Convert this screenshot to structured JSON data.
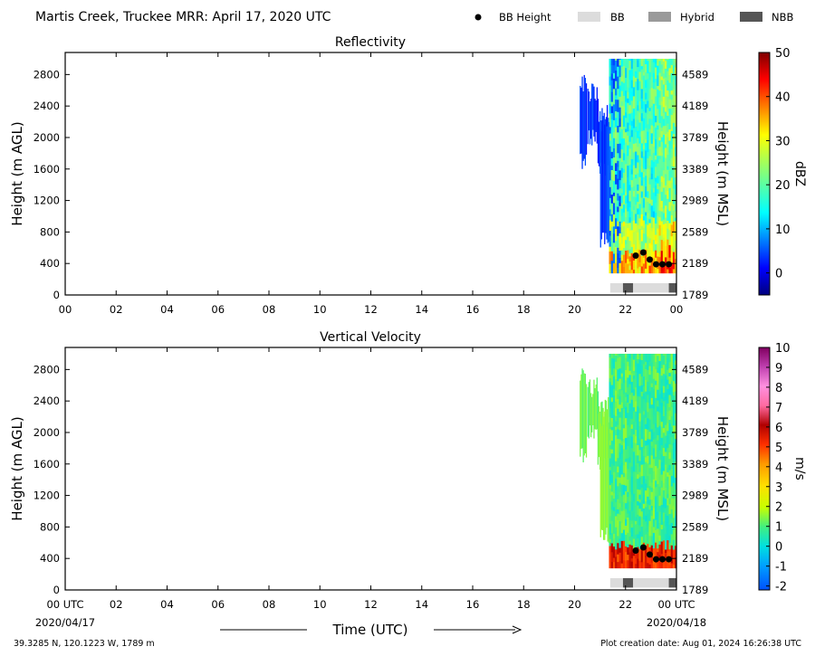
{
  "header": {
    "title": "Martis Creek, Truckee MRR:  April 17, 2020 UTC",
    "legend": [
      {
        "label": "BB Height",
        "marker": "dot",
        "color": "#000000"
      },
      {
        "label": "BB",
        "marker": "rect",
        "color": "#dcdcdc"
      },
      {
        "label": "Hybrid",
        "marker": "rect",
        "color": "#9a9a9a"
      },
      {
        "label": "NBB",
        "marker": "rect",
        "color": "#555555"
      }
    ]
  },
  "footer": {
    "location": "39.3285 N, 120.1223 W, 1789 m",
    "creation": "Plot creation date: Aug 01, 2024 16:26:38 UTC",
    "time_label": "Time (UTC)",
    "start_date": "2020/04/17",
    "end_date": "2020/04/18"
  },
  "chart_data": [
    {
      "type": "heatmap",
      "title": "Reflectivity",
      "ylabel": "Height (m AGL)",
      "ylabel_right": "Height (m MSL)",
      "colorbar_label": "dBZ",
      "colorbar_range": [
        -5,
        50
      ],
      "colorbar_ticks": [
        "0",
        "10",
        "20",
        "30",
        "40",
        "50"
      ],
      "colormap": "jet",
      "xlim": [
        0,
        24
      ],
      "ylim": [
        0,
        3080
      ],
      "x_tick_labels": [
        "00",
        "02",
        "04",
        "06",
        "08",
        "10",
        "12",
        "14",
        "16",
        "18",
        "20",
        "22",
        "00"
      ],
      "y_ticks": [
        0,
        400,
        800,
        1200,
        1600,
        2000,
        2400,
        2800
      ],
      "y_tick_labels": [
        "0",
        "400",
        "800",
        "1200",
        "1600",
        "2000",
        "2400",
        "2800"
      ],
      "y2_tick_labels": [
        "1789",
        "2189",
        "2589",
        "2989",
        "3389",
        "3789",
        "4189",
        "4589"
      ],
      "bb_height": {
        "x": [
          22.4,
          22.7,
          22.95,
          23.2,
          23.45,
          23.7
        ],
        "y": [
          500,
          540,
          450,
          390,
          390,
          390
        ]
      },
      "bb_class_bar": [
        {
          "x0": 21.4,
          "x1": 21.9,
          "class": "BB"
        },
        {
          "x0": 21.9,
          "x1": 22.3,
          "class": "NBB"
        },
        {
          "x0": 22.3,
          "x1": 23.7,
          "class": "BB"
        },
        {
          "x0": 23.7,
          "x1": 24.0,
          "class": "NBB"
        }
      ]
    },
    {
      "type": "heatmap",
      "title": "Vertical Velocity",
      "ylabel": "Height (m AGL)",
      "ylabel_right": "Height (m MSL)",
      "colorbar_label": "m/s",
      "colorbar_range": [
        -2.2,
        10
      ],
      "colorbar_ticks": [
        "-2",
        "-1",
        "0",
        "1",
        "2",
        "3",
        "4",
        "5",
        "6",
        "7",
        "8",
        "9",
        "10"
      ],
      "colormap": "velocity",
      "xlim": [
        0,
        24
      ],
      "ylim": [
        0,
        3080
      ],
      "x_tick_labels": [
        "00 UTC",
        "02",
        "04",
        "06",
        "08",
        "10",
        "12",
        "14",
        "16",
        "18",
        "20",
        "22",
        "00 UTC"
      ],
      "y_ticks": [
        0,
        400,
        800,
        1200,
        1600,
        2000,
        2400,
        2800
      ],
      "y_tick_labels": [
        "0",
        "400",
        "800",
        "1200",
        "1600",
        "2000",
        "2400",
        "2800"
      ],
      "y2_tick_labels": [
        "1789",
        "2189",
        "2589",
        "2989",
        "3389",
        "3789",
        "4189",
        "4589"
      ],
      "bb_height": {
        "x": [
          22.4,
          22.7,
          22.95,
          23.2,
          23.45,
          23.7
        ],
        "y": [
          500,
          540,
          450,
          390,
          390,
          390
        ]
      },
      "bb_class_bar": [
        {
          "x0": 21.4,
          "x1": 21.9,
          "class": "BB"
        },
        {
          "x0": 21.9,
          "x1": 22.3,
          "class": "NBB"
        },
        {
          "x0": 22.3,
          "x1": 23.7,
          "class": "BB"
        },
        {
          "x0": 23.7,
          "x1": 24.0,
          "class": "NBB"
        }
      ]
    }
  ]
}
